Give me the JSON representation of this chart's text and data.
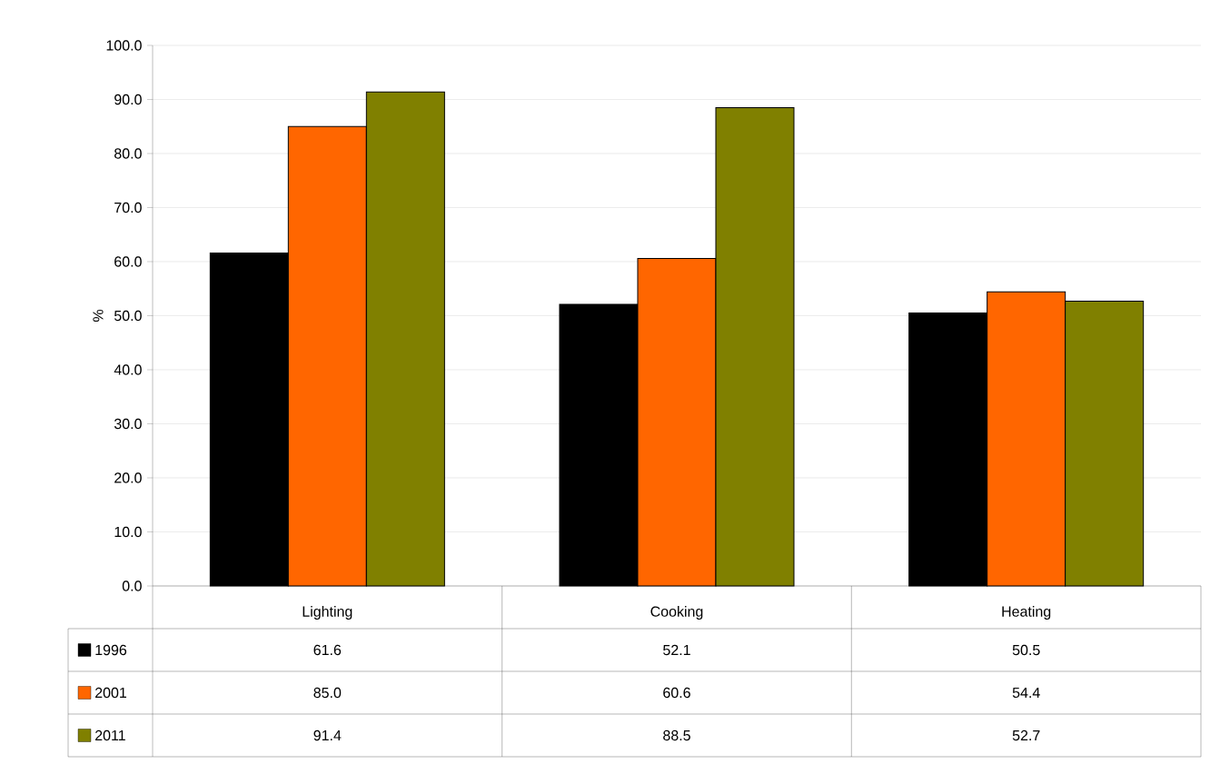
{
  "chart_data": {
    "type": "bar",
    "ylabel": "%",
    "categories": [
      "Lighting",
      "Cooking",
      "Heating"
    ],
    "series": [
      {
        "name": "1996",
        "color": "#000000",
        "values": [
          61.6,
          52.1,
          50.5
        ],
        "value_labels": [
          "61.6",
          "52.1",
          "50.5"
        ]
      },
      {
        "name": "2001",
        "color": "#ff6600",
        "values": [
          85.0,
          60.6,
          54.4
        ],
        "value_labels": [
          "85.0",
          "60.6",
          "54.4"
        ]
      },
      {
        "name": "2011",
        "color": "#808000",
        "values": [
          91.4,
          88.5,
          52.7
        ],
        "value_labels": [
          "91.4",
          "88.5",
          "52.7"
        ]
      }
    ],
    "ylim": [
      0,
      100
    ],
    "yticks": [
      {
        "value": 0,
        "label": "0.0"
      },
      {
        "value": 10,
        "label": "10.0"
      },
      {
        "value": 20,
        "label": "20.0"
      },
      {
        "value": 30,
        "label": "30.0"
      },
      {
        "value": 40,
        "label": "40.0"
      },
      {
        "value": 50,
        "label": "50.0"
      },
      {
        "value": 60,
        "label": "60.0"
      },
      {
        "value": 70,
        "label": "70.0"
      },
      {
        "value": 80,
        "label": "80.0"
      },
      {
        "value": 90,
        "label": "90.0"
      },
      {
        "value": 100,
        "label": "100.0"
      }
    ],
    "grid": "y",
    "legend": "bottom"
  }
}
